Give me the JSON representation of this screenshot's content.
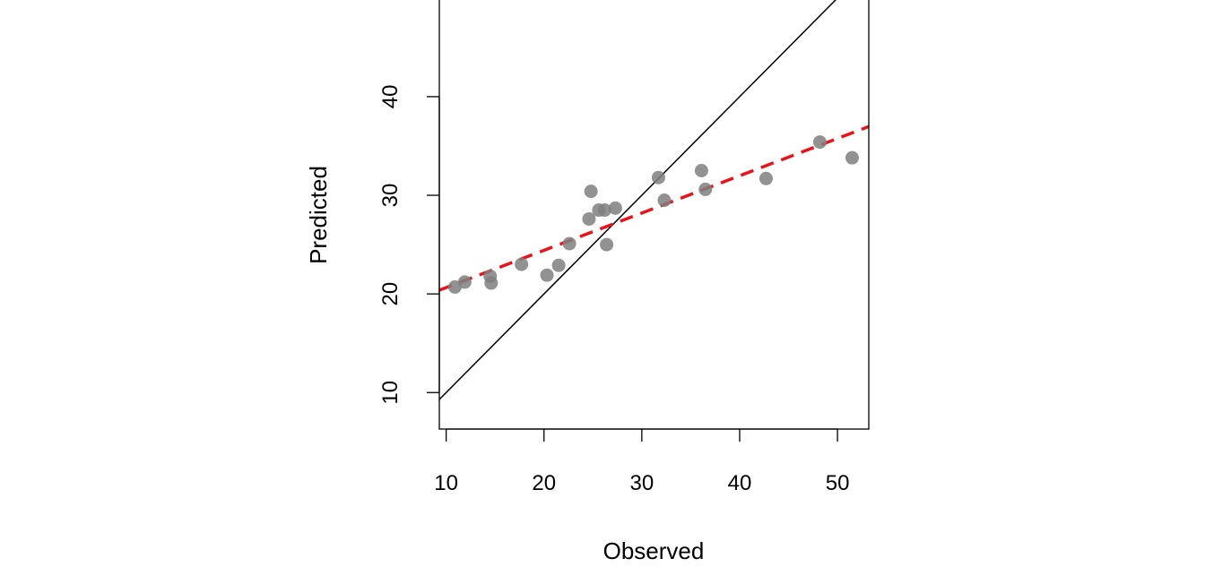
{
  "chart_data": {
    "type": "scatter",
    "xlabel": "Observed",
    "ylabel": "Predicted",
    "xlim": [
      9.3,
      53.2
    ],
    "ylim": [
      6.3,
      49.8
    ],
    "xticks": [
      10,
      20,
      30,
      40,
      50
    ],
    "yticks": [
      10,
      20,
      30,
      40
    ],
    "grid": false,
    "points": [
      {
        "x": 10.9,
        "y": 20.7
      },
      {
        "x": 11.9,
        "y": 21.2
      },
      {
        "x": 14.5,
        "y": 21.8
      },
      {
        "x": 14.6,
        "y": 21.1
      },
      {
        "x": 17.7,
        "y": 23.0
      },
      {
        "x": 20.3,
        "y": 21.9
      },
      {
        "x": 21.5,
        "y": 22.9
      },
      {
        "x": 22.6,
        "y": 25.1
      },
      {
        "x": 24.6,
        "y": 27.6
      },
      {
        "x": 24.8,
        "y": 30.4
      },
      {
        "x": 25.6,
        "y": 28.5
      },
      {
        "x": 26.2,
        "y": 28.5
      },
      {
        "x": 26.4,
        "y": 25.0
      },
      {
        "x": 27.3,
        "y": 28.7
      },
      {
        "x": 31.7,
        "y": 31.8
      },
      {
        "x": 32.3,
        "y": 29.5
      },
      {
        "x": 36.1,
        "y": 32.5
      },
      {
        "x": 36.5,
        "y": 30.6
      },
      {
        "x": 42.7,
        "y": 31.7
      },
      {
        "x": 48.2,
        "y": 35.4
      },
      {
        "x": 51.5,
        "y": 33.8
      }
    ],
    "reference_line": {
      "slope": 1,
      "intercept": 0,
      "color": "#000000",
      "style": "solid"
    },
    "fit_line": {
      "slope": 0.378,
      "intercept": 16.86,
      "color": "#e8141c",
      "style": "dashed"
    },
    "point_color": "#7f7f7f"
  }
}
